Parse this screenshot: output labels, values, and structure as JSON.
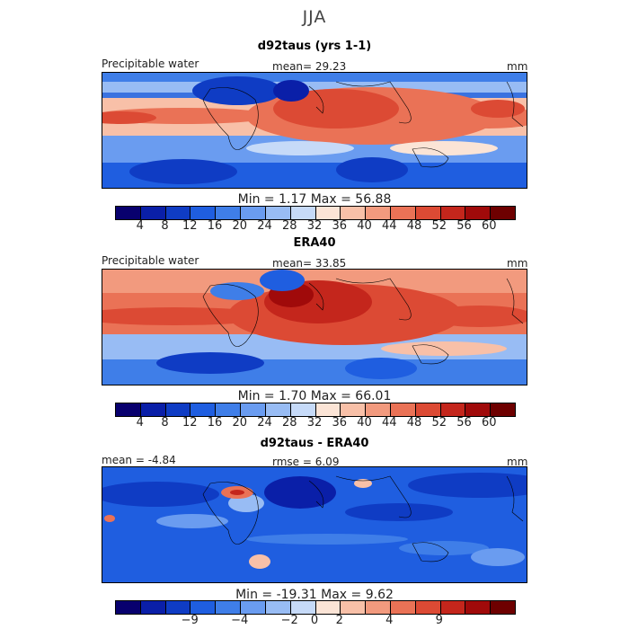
{
  "title": "JJA",
  "panels": [
    {
      "title": "d92taus (yrs 1-1)",
      "left_label": "Precipitable water",
      "center_label": "mean=  29.23",
      "right_label": "mm",
      "min_max": "Min =    1.17  Max =   56.88"
    },
    {
      "title": "ERA40",
      "left_label": "Precipitable water",
      "center_label": "mean=  33.85",
      "right_label": "mm",
      "min_max": "Min =    1.70  Max =   66.01"
    },
    {
      "title": "d92taus - ERA40",
      "left_label": "mean =  -4.84",
      "center_label": "rmse =   6.09",
      "right_label": "mm",
      "min_max": "Min = -19.31  Max =    9.62"
    }
  ],
  "colorbar_full": {
    "colors": [
      "#08006e",
      "#0a1fa8",
      "#0f3cc4",
      "#1f5ee0",
      "#3f7ee8",
      "#6a9cf0",
      "#98bcf4",
      "#c6daf8",
      "#fbe4d6",
      "#f8c0a8",
      "#f29a7e",
      "#ea7256",
      "#dc4a34",
      "#c4261c",
      "#a00a0a",
      "#6e0000"
    ],
    "ticks": [
      "4",
      "8",
      "12",
      "16",
      "20",
      "24",
      "28",
      "32",
      "36",
      "40",
      "44",
      "48",
      "52",
      "56",
      "60"
    ]
  },
  "colorbar_diff": {
    "colors": [
      "#08006e",
      "#0a1fa8",
      "#0f3cc4",
      "#1f5ee0",
      "#3f7ee8",
      "#6a9cf0",
      "#98bcf4",
      "#c6daf8",
      "#fbe4d6",
      "#f8c0a8",
      "#f29a7e",
      "#ea7256",
      "#dc4a34",
      "#c4261c",
      "#a00a0a",
      "#6e0000"
    ],
    "ticks": [
      "-9",
      "-4",
      "-2",
      "0",
      "2",
      "4",
      "9"
    ]
  }
}
